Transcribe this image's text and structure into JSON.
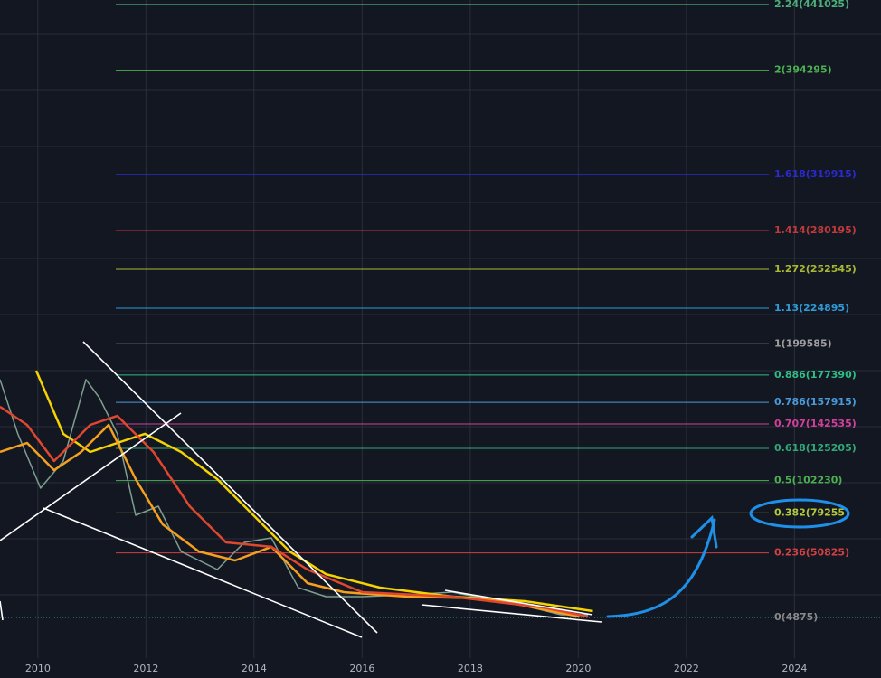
{
  "chart_data": {
    "type": "line",
    "xlim": [
      2009.3,
      2025.6
    ],
    "xticks": [
      2010,
      2012,
      2014,
      2016,
      2018,
      2020,
      2022,
      2024
    ],
    "ylim": [
      -38200,
      444200
    ],
    "grid": true,
    "levels": [
      {
        "value": 441025,
        "label": "2.24(441025)",
        "color": "#4caf7a"
      },
      {
        "value": 394295,
        "label": "2(394295)",
        "color": "#4caf50"
      },
      {
        "value": 319915,
        "label": "1.618(319915)",
        "color": "#2a2ad0"
      },
      {
        "value": 280195,
        "label": "1.414(280195)",
        "color": "#c03a3a"
      },
      {
        "value": 252545,
        "label": "1.272(252545)",
        "color": "#a8b832"
      },
      {
        "value": 224895,
        "label": "1.13(224895)",
        "color": "#2e9bd6"
      },
      {
        "value": 199585,
        "label": "1(199585)",
        "color": "#9e9e9e"
      },
      {
        "value": 177390,
        "label": "0.886(177390)",
        "color": "#2ebd85"
      },
      {
        "value": 157915,
        "label": "0.786(157915)",
        "color": "#4a9ad8"
      },
      {
        "value": 142535,
        "label": "0.707(142535)",
        "color": "#d0409a"
      },
      {
        "value": 125205,
        "label": "0.618(125205)",
        "color": "#30a878"
      },
      {
        "value": 102230,
        "label": "0.5(102230)",
        "color": "#4caf50"
      },
      {
        "value": 79255,
        "label": "0.382(79255)",
        "color": "#b5c83a"
      },
      {
        "value": 50825,
        "label": "0.236(50825)",
        "color": "#d04040"
      },
      {
        "value": 4875,
        "label": "0(4875)",
        "color": "#8a8a8a"
      }
    ],
    "series": [
      {
        "color": "#7f9f8f",
        "x": [
          2009.3,
          2009.63,
          2010.05,
          2010.47,
          2010.89,
          2011.14,
          2011.47,
          2011.81,
          2012.23,
          2012.65,
          2013.32,
          2013.82,
          2014.32,
          2014.82,
          2015.33,
          2016.0,
          2016.83,
          2017.67,
          2018.51,
          2019.01,
          2019.68,
          2020.18
        ],
        "values": [
          174100,
          135500,
          96900,
          116200,
          174100,
          161200,
          135500,
          77600,
          84000,
          51800,
          39000,
          58300,
          61500,
          26100,
          19700,
          19700,
          21000,
          22900,
          16500,
          13200,
          6800,
          6800
        ]
      },
      {
        "color": "#f5d300",
        "x": [
          2009.97,
          2010.47,
          2010.97,
          2011.47,
          2011.98,
          2012.65,
          2013.32,
          2013.99,
          2014.66,
          2015.33,
          2016.33,
          2017.67,
          2019.01,
          2020.27
        ],
        "values": [
          180500,
          135500,
          122600,
          129000,
          135500,
          122600,
          103300,
          77600,
          51800,
          35700,
          26100,
          19700,
          16500,
          9400
        ]
      },
      {
        "color": "#f5a01e",
        "x": [
          2009.3,
          2009.8,
          2010.3,
          2010.8,
          2011.31,
          2011.81,
          2012.31,
          2012.98,
          2013.65,
          2014.32,
          2014.99,
          2015.66,
          2016.83,
          2018.34,
          2020.02
        ],
        "values": [
          122600,
          129000,
          109700,
          122600,
          141900,
          103300,
          71100,
          51800,
          45400,
          55100,
          29300,
          22900,
          19700,
          18400,
          5500
        ]
      },
      {
        "color": "#e0472f",
        "x": [
          2009.3,
          2009.8,
          2010.3,
          2010.97,
          2011.47,
          2012.14,
          2012.81,
          2013.48,
          2014.32,
          2014.99,
          2016.0,
          2017.67,
          2019.35,
          2020.18
        ],
        "values": [
          154800,
          141900,
          116200,
          141900,
          148300,
          122600,
          84000,
          58300,
          55100,
          38900,
          22900,
          19700,
          11950,
          5500
        ]
      }
    ]
  }
}
